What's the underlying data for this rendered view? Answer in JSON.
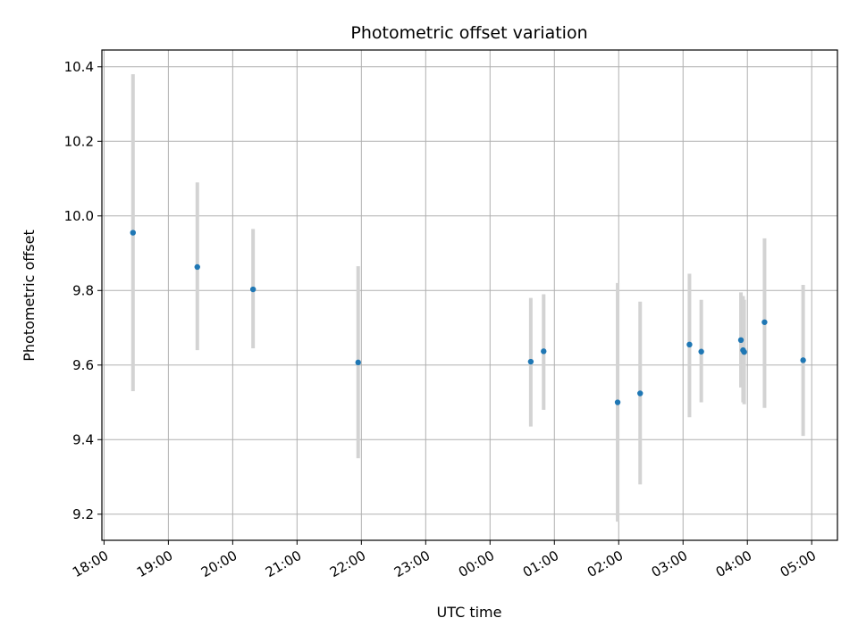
{
  "chart_data": {
    "type": "scatter",
    "title": "Photometric offset variation",
    "xlabel": "UTC time",
    "ylabel": "Photometric offset",
    "grid": true,
    "xlim": [
      "17:58",
      "05:24"
    ],
    "ylim": [
      9.13,
      10.445
    ],
    "x_ticks": [
      "18:00",
      "19:00",
      "20:00",
      "21:00",
      "22:00",
      "23:00",
      "00:00",
      "01:00",
      "02:00",
      "03:00",
      "04:00",
      "05:00"
    ],
    "y_ticks": [
      "9.2",
      "9.4",
      "9.6",
      "9.8",
      "10.0",
      "10.2",
      "10.4"
    ],
    "colors": {
      "point": "#1f77b4",
      "errorbar": "#d3d3d3",
      "grid": "#b0b0b0",
      "axis": "#000000"
    },
    "points": [
      {
        "time": "18:27",
        "y": 9.955,
        "yerr_low": 9.53,
        "yerr_high": 10.38
      },
      {
        "time": "19:27",
        "y": 9.863,
        "yerr_low": 9.64,
        "yerr_high": 10.09
      },
      {
        "time": "20:19",
        "y": 9.803,
        "yerr_low": 9.645,
        "yerr_high": 9.965
      },
      {
        "time": "21:57",
        "y": 9.607,
        "yerr_low": 9.35,
        "yerr_high": 9.865
      },
      {
        "time": "00:38",
        "y": 9.609,
        "yerr_low": 9.435,
        "yerr_high": 9.78
      },
      {
        "time": "00:50",
        "y": 9.637,
        "yerr_low": 9.48,
        "yerr_high": 9.79
      },
      {
        "time": "01:59",
        "y": 9.5,
        "yerr_low": 9.18,
        "yerr_high": 9.82
      },
      {
        "time": "02:20",
        "y": 9.524,
        "yerr_low": 9.28,
        "yerr_high": 9.77
      },
      {
        "time": "03:06",
        "y": 9.655,
        "yerr_low": 9.46,
        "yerr_high": 9.845
      },
      {
        "time": "03:17",
        "y": 9.636,
        "yerr_low": 9.5,
        "yerr_high": 9.775
      },
      {
        "time": "03:54",
        "y": 9.667,
        "yerr_low": 9.54,
        "yerr_high": 9.795
      },
      {
        "time": "03:56",
        "y": 9.64,
        "yerr_low": 9.5,
        "yerr_high": 9.785
      },
      {
        "time": "03:57",
        "y": 9.635,
        "yerr_low": 9.495,
        "yerr_high": 9.775
      },
      {
        "time": "04:16",
        "y": 9.715,
        "yerr_low": 9.485,
        "yerr_high": 9.94
      },
      {
        "time": "04:52",
        "y": 9.613,
        "yerr_low": 9.41,
        "yerr_high": 9.815
      }
    ]
  }
}
